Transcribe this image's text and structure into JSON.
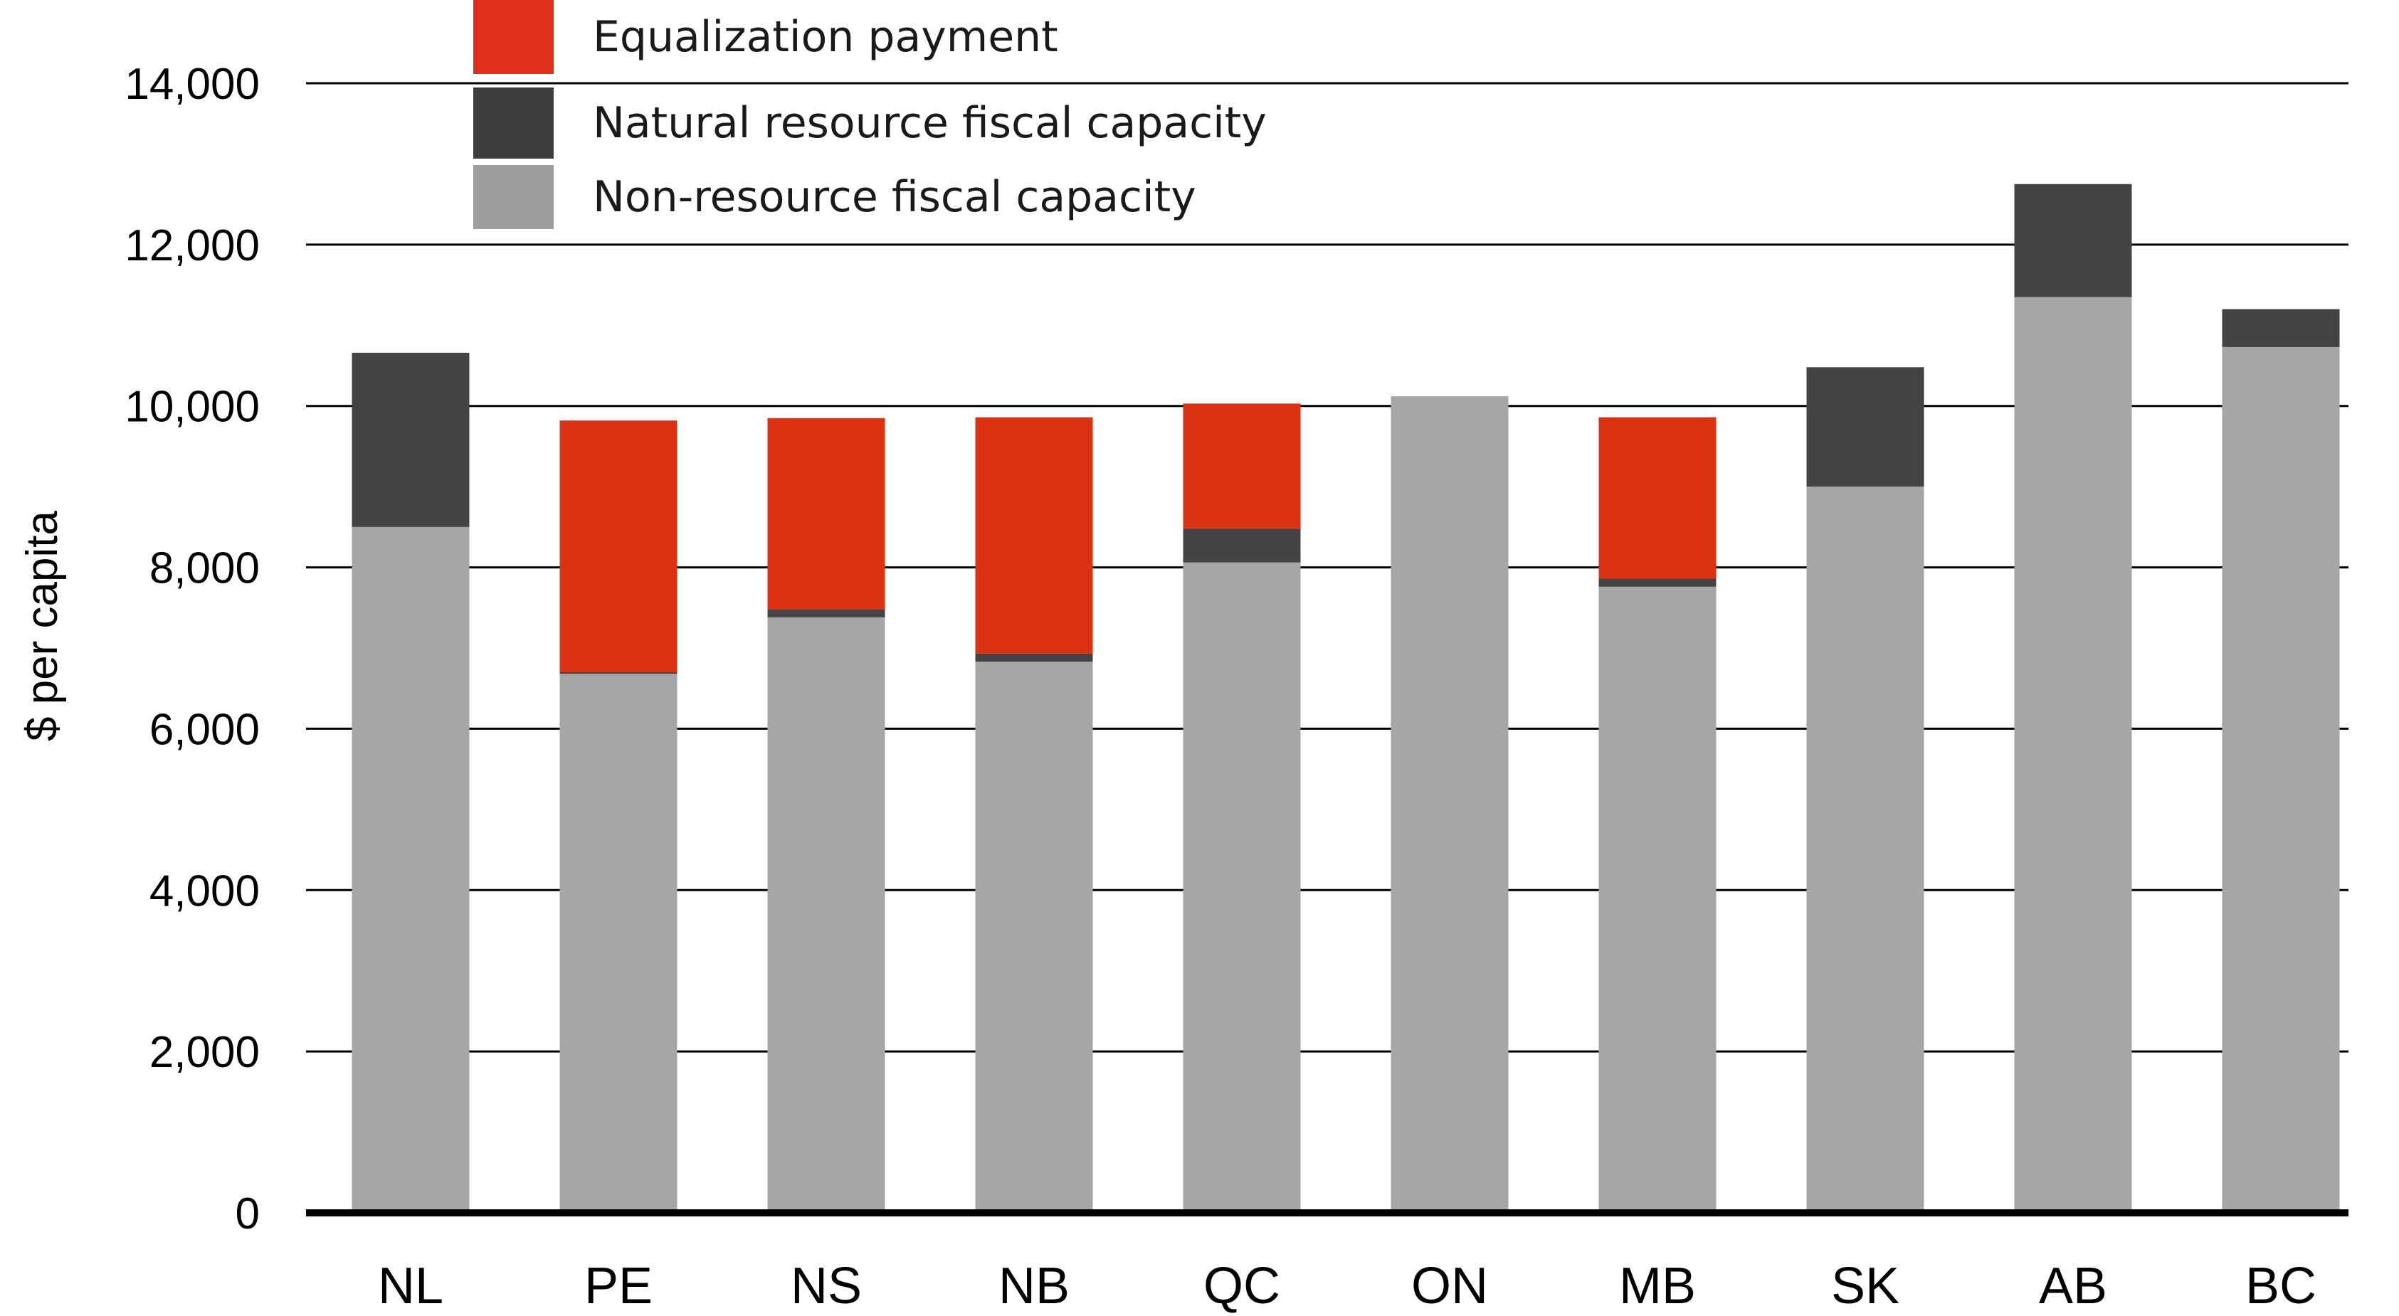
{
  "chart_data": {
    "type": "bar",
    "stacked": true,
    "title": "",
    "xlabel": "",
    "ylabel": "$ per capita",
    "ylim": [
      0,
      14000
    ],
    "yticks": [
      0,
      2000,
      4000,
      6000,
      8000,
      10000,
      12000,
      14000
    ],
    "ytick_labels": [
      "0",
      "2,000",
      "4,000",
      "6,000",
      "8,000",
      "10,000",
      "12,000",
      "14,000"
    ],
    "grid": true,
    "legend_position": "top-left",
    "categories": [
      "NL",
      "PE",
      "NS",
      "NB",
      "QC",
      "ON",
      "MB",
      "SK",
      "AB",
      "BC"
    ],
    "series": [
      {
        "name": "Non-resource fiscal capacity",
        "color": "#a6a6a8",
        "legend_color": "#9e9e9e",
        "values": [
          8500,
          6680,
          7380,
          6830,
          8060,
          10120,
          7760,
          9000,
          11350,
          10730
        ]
      },
      {
        "name": "Natural resource fiscal capacity",
        "color": "#444444",
        "legend_color": "#3d3d3d",
        "values": [
          2160,
          20,
          100,
          100,
          420,
          0,
          100,
          1480,
          1400,
          470
        ]
      },
      {
        "name": "Equalization payment",
        "color": "#dc3214",
        "legend_color": "#e0301a",
        "values": [
          0,
          3120,
          2370,
          2930,
          1550,
          0,
          2000,
          0,
          0,
          0
        ]
      }
    ],
    "legend_order": [
      "Equalization payment",
      "Natural resource fiscal capacity",
      "Non-resource fiscal capacity"
    ]
  }
}
